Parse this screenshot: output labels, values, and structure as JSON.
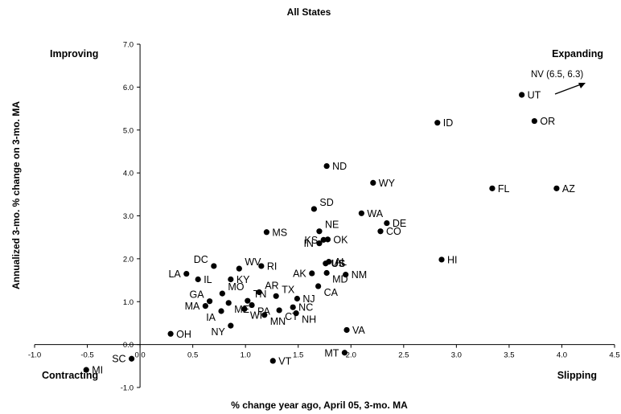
{
  "chart_data": {
    "type": "scatter",
    "title": "All States",
    "xlabel": "% change year ago, April 05, 3-mo. MA",
    "ylabel": "Annualized 3-mo. % change on 3-mo. MA",
    "xlim": [
      -1.0,
      4.5
    ],
    "ylim": [
      -1.0,
      7.0
    ],
    "x_ticks": [
      "-1.0",
      "-0.5",
      "0.0",
      "0.5",
      "1.0",
      "1.5",
      "2.0",
      "2.5",
      "3.0",
      "3.5",
      "4.0",
      "4.5"
    ],
    "y_ticks": [
      "-1.0",
      "0.0",
      "1.0",
      "2.0",
      "3.0",
      "4.0",
      "5.0",
      "6.0",
      "7.0"
    ],
    "grid": false,
    "quadrant_labels": {
      "top_left": "Improving",
      "top_right": "Expanding",
      "bottom_left": "Contracting",
      "bottom_right": "Slipping"
    },
    "annotation": "NV (6.5, 6.3)",
    "points": [
      {
        "label": "UT",
        "x": 3.62,
        "y": 5.82
      },
      {
        "label": "OR",
        "x": 3.74,
        "y": 5.21
      },
      {
        "label": "ID",
        "x": 2.82,
        "y": 5.17
      },
      {
        "label": "ND",
        "x": 1.77,
        "y": 4.16
      },
      {
        "label": "WY",
        "x": 2.21,
        "y": 3.77
      },
      {
        "label": "FL",
        "x": 3.34,
        "y": 3.64
      },
      {
        "label": "AZ",
        "x": 3.95,
        "y": 3.64
      },
      {
        "label": "SD",
        "x": 1.65,
        "y": 3.16
      },
      {
        "label": "WA",
        "x": 2.1,
        "y": 3.06
      },
      {
        "label": "DE",
        "x": 2.34,
        "y": 2.83
      },
      {
        "label": "CO",
        "x": 2.28,
        "y": 2.64
      },
      {
        "label": "NE",
        "x": 1.7,
        "y": 2.64
      },
      {
        "label": "MS",
        "x": 1.2,
        "y": 2.62
      },
      {
        "label": "KS",
        "x": 1.74,
        "y": 2.44
      },
      {
        "label": "OK",
        "x": 1.78,
        "y": 2.45
      },
      {
        "label": "IN",
        "x": 1.7,
        "y": 2.36
      },
      {
        "label": "HI",
        "x": 2.86,
        "y": 1.98
      },
      {
        "label": "US",
        "x": 1.76,
        "y": 1.89,
        "bold": true
      },
      {
        "label": "AL",
        "x": 1.79,
        "y": 1.93
      },
      {
        "label": "RI",
        "x": 1.15,
        "y": 1.83
      },
      {
        "label": "DC",
        "x": 0.7,
        "y": 1.83
      },
      {
        "label": "WV",
        "x": 0.94,
        "y": 1.77
      },
      {
        "label": "AK",
        "x": 1.63,
        "y": 1.66
      },
      {
        "label": "MD",
        "x": 1.77,
        "y": 1.67
      },
      {
        "label": "NM",
        "x": 1.95,
        "y": 1.63
      },
      {
        "label": "LA",
        "x": 0.44,
        "y": 1.65
      },
      {
        "label": "IL",
        "x": 0.55,
        "y": 1.52
      },
      {
        "label": "KY",
        "x": 0.86,
        "y": 1.52
      },
      {
        "label": "CA",
        "x": 1.69,
        "y": 1.36
      },
      {
        "label": "AR",
        "x": 1.13,
        "y": 1.22
      },
      {
        "label": "GA",
        "x": 0.66,
        "y": 1.01
      },
      {
        "label": "MO",
        "x": 0.78,
        "y": 1.19
      },
      {
        "label": "TN",
        "x": 1.02,
        "y": 1.02
      },
      {
        "label": "TX",
        "x": 1.29,
        "y": 1.13
      },
      {
        "label": "NJ",
        "x": 1.49,
        "y": 1.07
      },
      {
        "label": "MA",
        "x": 0.62,
        "y": 0.9
      },
      {
        "label": "ME",
        "x": 0.84,
        "y": 0.97
      },
      {
        "label": "PA",
        "x": 1.06,
        "y": 0.92
      },
      {
        "label": "NC",
        "x": 1.45,
        "y": 0.87
      },
      {
        "label": "IA",
        "x": 0.77,
        "y": 0.78
      },
      {
        "label": "WI",
        "x": 0.99,
        "y": 0.83
      },
      {
        "label": "CT",
        "x": 1.32,
        "y": 0.8
      },
      {
        "label": "NH",
        "x": 1.48,
        "y": 0.73
      },
      {
        "label": "MN",
        "x": 1.18,
        "y": 0.69
      },
      {
        "label": "NY",
        "x": 0.86,
        "y": 0.44
      },
      {
        "label": "VA",
        "x": 1.96,
        "y": 0.34
      },
      {
        "label": "OH",
        "x": 0.29,
        "y": 0.25
      },
      {
        "label": "MT",
        "x": 1.94,
        "y": -0.19
      },
      {
        "label": "SC",
        "x": -0.08,
        "y": -0.33
      },
      {
        "label": "VT",
        "x": 1.26,
        "y": -0.38
      },
      {
        "label": "MI",
        "x": -0.51,
        "y": -0.59
      }
    ]
  }
}
